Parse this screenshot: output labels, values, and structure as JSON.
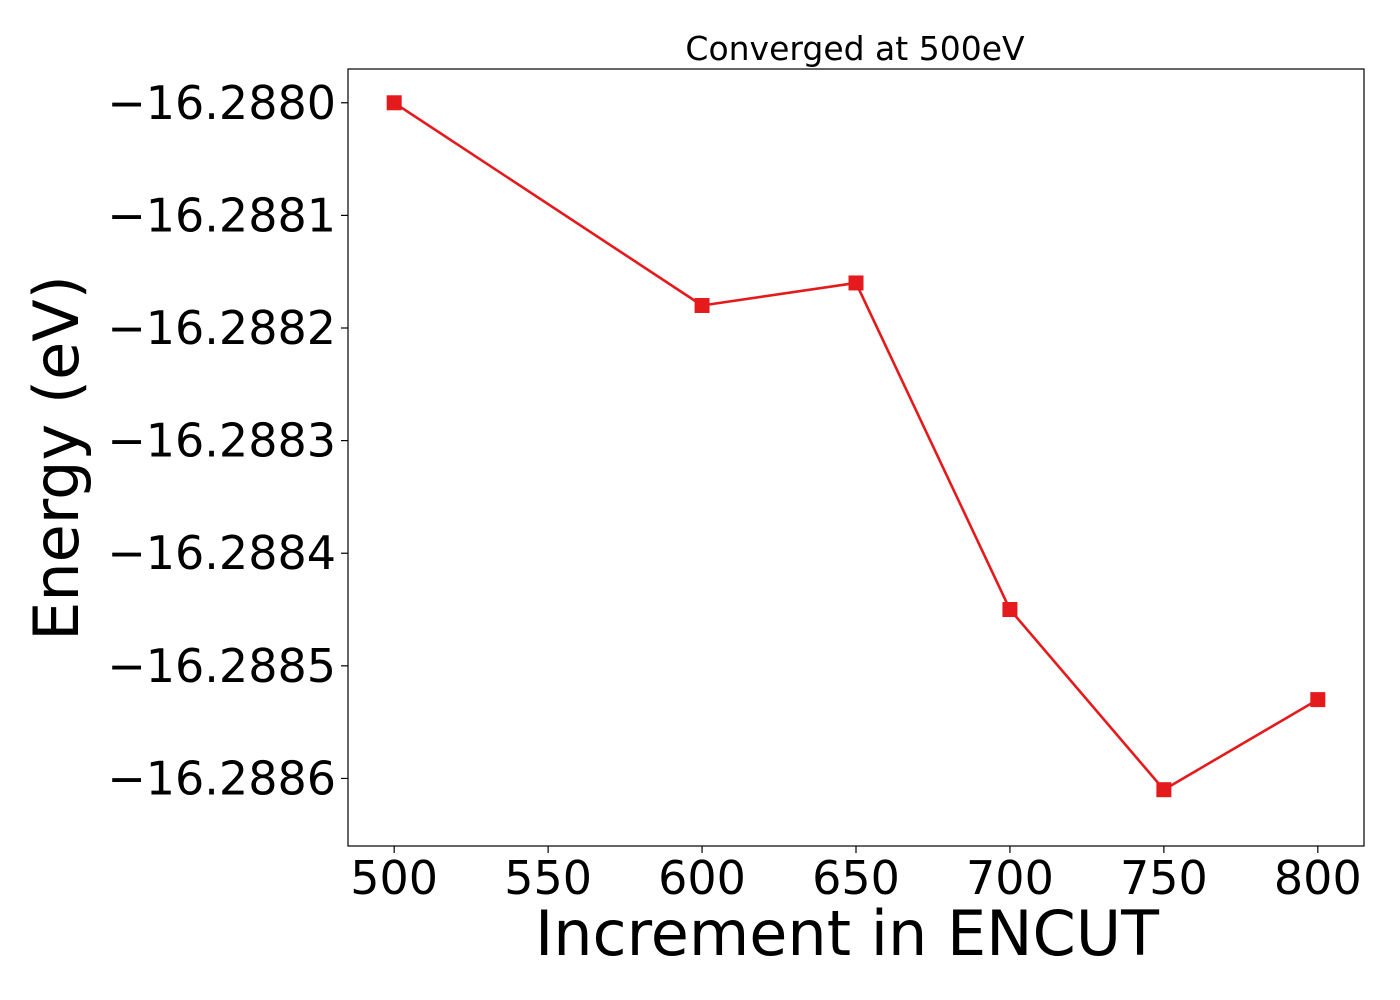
{
  "chart_data": {
    "type": "line",
    "title": "Converged at 500eV",
    "xlabel": "Increment in ENCUT",
    "ylabel": "Energy (eV)",
    "x": [
      500,
      600,
      650,
      700,
      750,
      800
    ],
    "series": [
      {
        "values": [
          -16.288,
          -16.28818,
          -16.28816,
          -16.28845,
          -16.28861,
          -16.28853
        ],
        "color": "#e41a1c",
        "marker": "square"
      }
    ],
    "xlim": [
      485,
      815
    ],
    "ylim": [
      -16.28866,
      -16.28797
    ],
    "xticks": [
      500,
      550,
      600,
      650,
      700,
      750,
      800
    ],
    "xtick_labels": [
      "500",
      "550",
      "600",
      "650",
      "700",
      "750",
      "800"
    ],
    "yticks": [
      -16.288,
      -16.2881,
      -16.2882,
      -16.2883,
      -16.2884,
      -16.2885,
      -16.2886
    ],
    "ytick_labels": [
      "−16.2880",
      "−16.2881",
      "−16.2882",
      "−16.2883",
      "−16.2884",
      "−16.2885",
      "−16.2886"
    ],
    "grid": false,
    "legend": false
  }
}
